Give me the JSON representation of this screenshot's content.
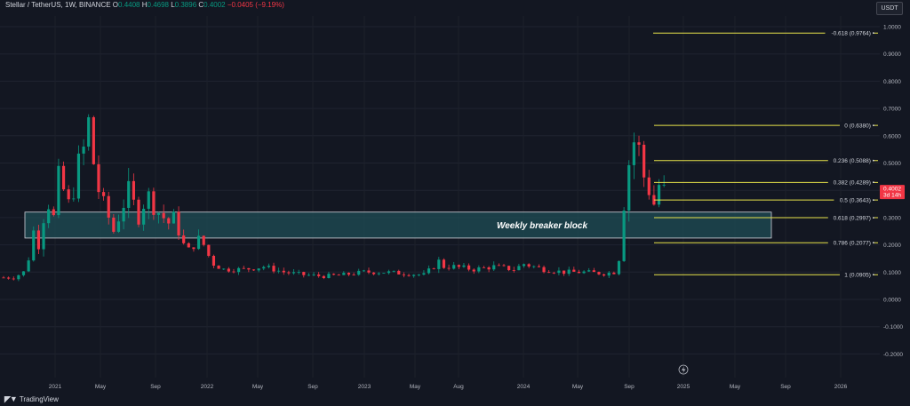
{
  "header": {
    "symbol": "Stellar / TetherUS, 1W, BINANCE",
    "o_label": "O",
    "o_value": "0.4408",
    "h_label": "H",
    "h_value": "0.4698",
    "l_label": "L",
    "l_value": "0.3896",
    "c_label": "C",
    "c_value": "0.4002",
    "change": "−0.0405 (−9.19%)"
  },
  "currency_button": "USDT",
  "branding": "TradingView",
  "colors": {
    "up": "#089981",
    "down": "#f23645",
    "fib": "#e8e34a",
    "zone_fill": "#1f4e56",
    "zone_stroke": "#d1d4dc",
    "bg": "#131722",
    "price_label": "#f23645"
  },
  "chart_data": {
    "type": "candlestick",
    "y_ticks": [
      "1.0000",
      "0.9000",
      "0.8000",
      "0.7000",
      "0.6000",
      "0.5000",
      "0.4000",
      "0.3000",
      "0.2000",
      "0.1000",
      "0.0000",
      "-0.1000",
      "-0.2000"
    ],
    "x_ticks": [
      "2021",
      "May",
      "Sep",
      "2022",
      "May",
      "Sep",
      "2023",
      "May",
      "Aug",
      "2024",
      "May",
      "Sep",
      "2025",
      "May",
      "Sep",
      "2026"
    ],
    "ylim": [
      -0.2,
      1.0
    ],
    "last_price": {
      "value": "0.4002",
      "countdown": "3d 14h"
    },
    "fib_levels": [
      {
        "ratio": -0.618,
        "label": "-0.618 (0.9764)",
        "price": 0.9764
      },
      {
        "ratio": 0,
        "label": "0 (0.6380)",
        "price": 0.638
      },
      {
        "ratio": 0.236,
        "label": "0.236 (0.5088)",
        "price": 0.5088
      },
      {
        "ratio": 0.382,
        "label": "0.382 (0.4289)",
        "price": 0.4289
      },
      {
        "ratio": 0.5,
        "label": "0.5 (0.3643)",
        "price": 0.3643
      },
      {
        "ratio": 0.618,
        "label": "0.618 (0.2997)",
        "price": 0.2997
      },
      {
        "ratio": 0.786,
        "label": "0.786 (0.2077)",
        "price": 0.2077
      },
      {
        "ratio": 1,
        "label": "1 (0.0905)",
        "price": 0.0905
      }
    ],
    "annotation": {
      "label": "Weekly breaker block",
      "price_top": 0.32,
      "price_bottom": 0.225
    },
    "price_path": [
      [
        0,
        0.08
      ],
      [
        2,
        0.08
      ],
      [
        4,
        0.1
      ],
      [
        5,
        0.15
      ],
      [
        6,
        0.25
      ],
      [
        7,
        0.2
      ],
      [
        8,
        0.3
      ],
      [
        9,
        0.35
      ],
      [
        10,
        0.3
      ],
      [
        11,
        0.45
      ],
      [
        12,
        0.4
      ],
      [
        13,
        0.35
      ],
      [
        14,
        0.4
      ],
      [
        15,
        0.5
      ],
      [
        16,
        0.55
      ],
      [
        17,
        0.65
      ],
      [
        18,
        0.5
      ],
      [
        19,
        0.4
      ],
      [
        20,
        0.35
      ],
      [
        21,
        0.3
      ],
      [
        22,
        0.25
      ],
      [
        23,
        0.3
      ],
      [
        24,
        0.35
      ],
      [
        25,
        0.4
      ],
      [
        26,
        0.35
      ],
      [
        27,
        0.3
      ],
      [
        28,
        0.35
      ],
      [
        29,
        0.38
      ],
      [
        30,
        0.34
      ],
      [
        31,
        0.32
      ],
      [
        32,
        0.3
      ],
      [
        33,
        0.28
      ],
      [
        34,
        0.3
      ],
      [
        35,
        0.25
      ],
      [
        36,
        0.2
      ],
      [
        37,
        0.18
      ],
      [
        38,
        0.2
      ],
      [
        39,
        0.22
      ],
      [
        40,
        0.2
      ],
      [
        41,
        0.16
      ],
      [
        42,
        0.13
      ],
      [
        44,
        0.11
      ],
      [
        48,
        0.11
      ],
      [
        52,
        0.12
      ],
      [
        56,
        0.1
      ],
      [
        60,
        0.09
      ],
      [
        64,
        0.085
      ],
      [
        68,
        0.09
      ],
      [
        72,
        0.1
      ],
      [
        76,
        0.1
      ],
      [
        80,
        0.095
      ],
      [
        84,
        0.09
      ],
      [
        86,
        0.12
      ],
      [
        87,
        0.14
      ],
      [
        88,
        0.12
      ],
      [
        90,
        0.12
      ],
      [
        94,
        0.11
      ],
      [
        98,
        0.12
      ],
      [
        102,
        0.11
      ],
      [
        104,
        0.13
      ],
      [
        106,
        0.12
      ],
      [
        108,
        0.11
      ],
      [
        112,
        0.1
      ],
      [
        116,
        0.1
      ],
      [
        120,
        0.095
      ],
      [
        122,
        0.1
      ],
      [
        123,
        0.15
      ],
      [
        124,
        0.35
      ],
      [
        125,
        0.5
      ],
      [
        126,
        0.58
      ],
      [
        127,
        0.55
      ],
      [
        128,
        0.45
      ],
      [
        129,
        0.4
      ],
      [
        130,
        0.35
      ],
      [
        131,
        0.42
      ],
      [
        132,
        0.4
      ]
    ]
  }
}
